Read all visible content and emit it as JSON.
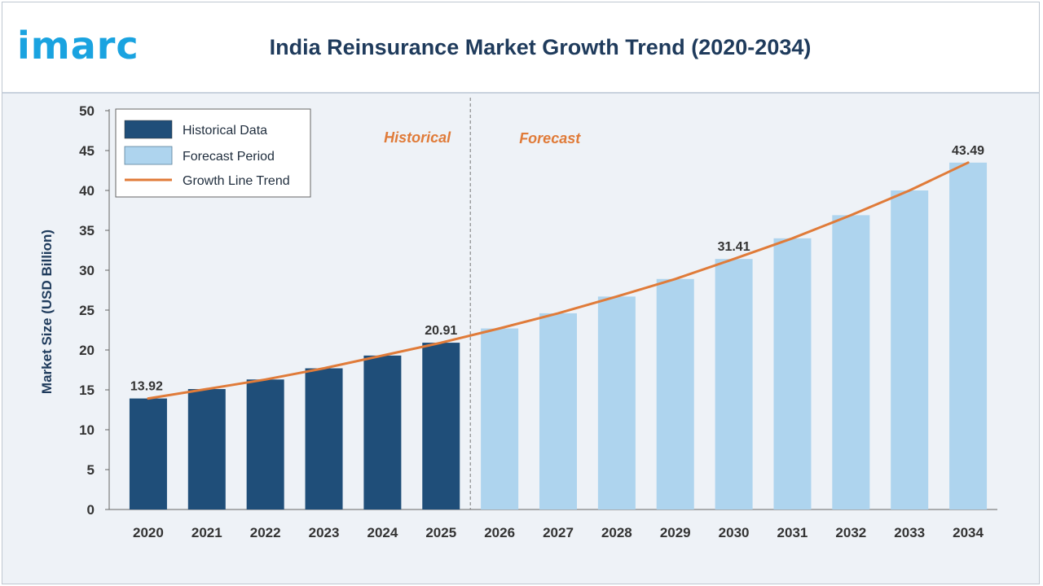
{
  "logo": {
    "text": "imarc"
  },
  "header": {
    "title": "India Reinsurance Market Growth Trend (2020-2034)"
  },
  "colors": {
    "historical": "#1f4e79",
    "forecast": "#aed4ee",
    "trend": "#e07b39",
    "phase_label": "#e07b39",
    "axis_text": "#333333",
    "ylabel": "#1f3b5c"
  },
  "phases": {
    "historical": "Historical",
    "forecast": "Forecast"
  },
  "chart_data": {
    "type": "bar",
    "title": "India Reinsurance Market Growth Trend (2020-2034)",
    "xlabel": "",
    "ylabel": "Market Size (USD Billion)",
    "ylim": [
      0,
      50
    ],
    "yticks": [
      0,
      5,
      10,
      15,
      20,
      25,
      30,
      35,
      40,
      45,
      50
    ],
    "grid": false,
    "legend_position": "top-left",
    "categories": [
      "2020",
      "2021",
      "2022",
      "2023",
      "2024",
      "2025",
      "2026",
      "2027",
      "2028",
      "2029",
      "2030",
      "2031",
      "2032",
      "2033",
      "2034"
    ],
    "series": [
      {
        "name": "Historical Data",
        "kind": "bar",
        "values": [
          13.92,
          15.1,
          16.3,
          17.7,
          19.3,
          20.91,
          null,
          null,
          null,
          null,
          null,
          null,
          null,
          null,
          null
        ]
      },
      {
        "name": "Forecast Period",
        "kind": "bar",
        "values": [
          null,
          null,
          null,
          null,
          null,
          null,
          22.7,
          24.6,
          26.7,
          28.9,
          31.41,
          34.0,
          36.9,
          40.0,
          43.49
        ]
      },
      {
        "name": "Growth Line Trend",
        "kind": "line",
        "values": [
          13.92,
          15.1,
          16.3,
          17.7,
          19.3,
          20.91,
          22.7,
          24.6,
          26.7,
          28.9,
          31.41,
          34.0,
          36.9,
          40.0,
          43.49
        ]
      }
    ],
    "data_labels": [
      {
        "category": "2020",
        "text": "13.92",
        "value": 13.92
      },
      {
        "category": "2025",
        "text": "20.91",
        "value": 20.91
      },
      {
        "category": "2030",
        "text": "31.41",
        "value": 31.41
      },
      {
        "category": "2034",
        "text": "43.49",
        "value": 43.49
      }
    ],
    "phase_split_after": "2025"
  }
}
